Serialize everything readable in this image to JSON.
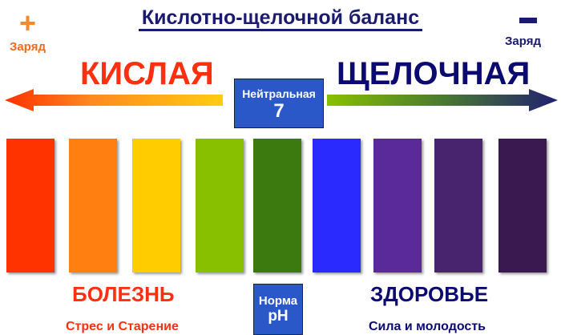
{
  "title": "Кислотно-щелочной баланс",
  "left_charge": {
    "sign": "+",
    "label": "Заряд"
  },
  "right_charge": {
    "sign": "−",
    "label": "Заряд"
  },
  "acid_label": "КИСЛАЯ",
  "alkaline_label": "ЩЕЛОЧНАЯ",
  "neutral": {
    "label": "Нейтральная",
    "value": "7"
  },
  "bars": {
    "colors": [
      "#ff3300",
      "#ff8010",
      "#ffcc00",
      "#88c000",
      "#3c7a10",
      "#2a2aff",
      "#5a2a9a",
      "#48246e",
      "#3a1850"
    ]
  },
  "disease_label": "БОЛЕЗНЬ",
  "disease_sub": "Стрес и Старение",
  "health_label": "ЗДОРОВЬЕ",
  "health_sub": "Сила и молодость",
  "norm": {
    "line1": "Норма",
    "line2": "pH"
  }
}
